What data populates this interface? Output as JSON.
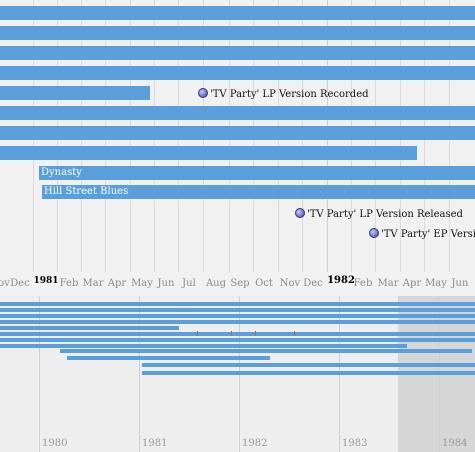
{
  "upper_band": {
    "bars": [
      {
        "label": ""
      },
      {
        "label": ""
      },
      {
        "label": ""
      },
      {
        "label": ""
      },
      {
        "label": ""
      },
      {
        "label": ""
      },
      {
        "label": ""
      },
      {
        "label": ""
      },
      {
        "label": "Dynasty"
      },
      {
        "label": "Hill Street Blues"
      }
    ],
    "events": [
      {
        "label": "'TV Party' LP Version Recorded"
      },
      {
        "label": "'TV Party' LP Version Released"
      },
      {
        "label": "'TV Party' EP Version Released"
      }
    ],
    "month_labels": [
      "ov",
      "Dec",
      "Feb",
      "Mar",
      "Apr",
      "May",
      "Jun",
      "Jul",
      "Aug",
      "Sep",
      "Oct",
      "Nov",
      "Dec",
      "Feb",
      "Mar",
      "Apr",
      "May",
      "Jun"
    ],
    "year_labels": [
      "1981",
      "1982"
    ]
  },
  "lower_band": {
    "year_labels": [
      "1980",
      "1981",
      "1982",
      "1983",
      "1984"
    ]
  },
  "colors": {
    "bar": "#5a9fdc",
    "event_dot": "#7b7bd3",
    "highlight": "#d6d6d6"
  }
}
